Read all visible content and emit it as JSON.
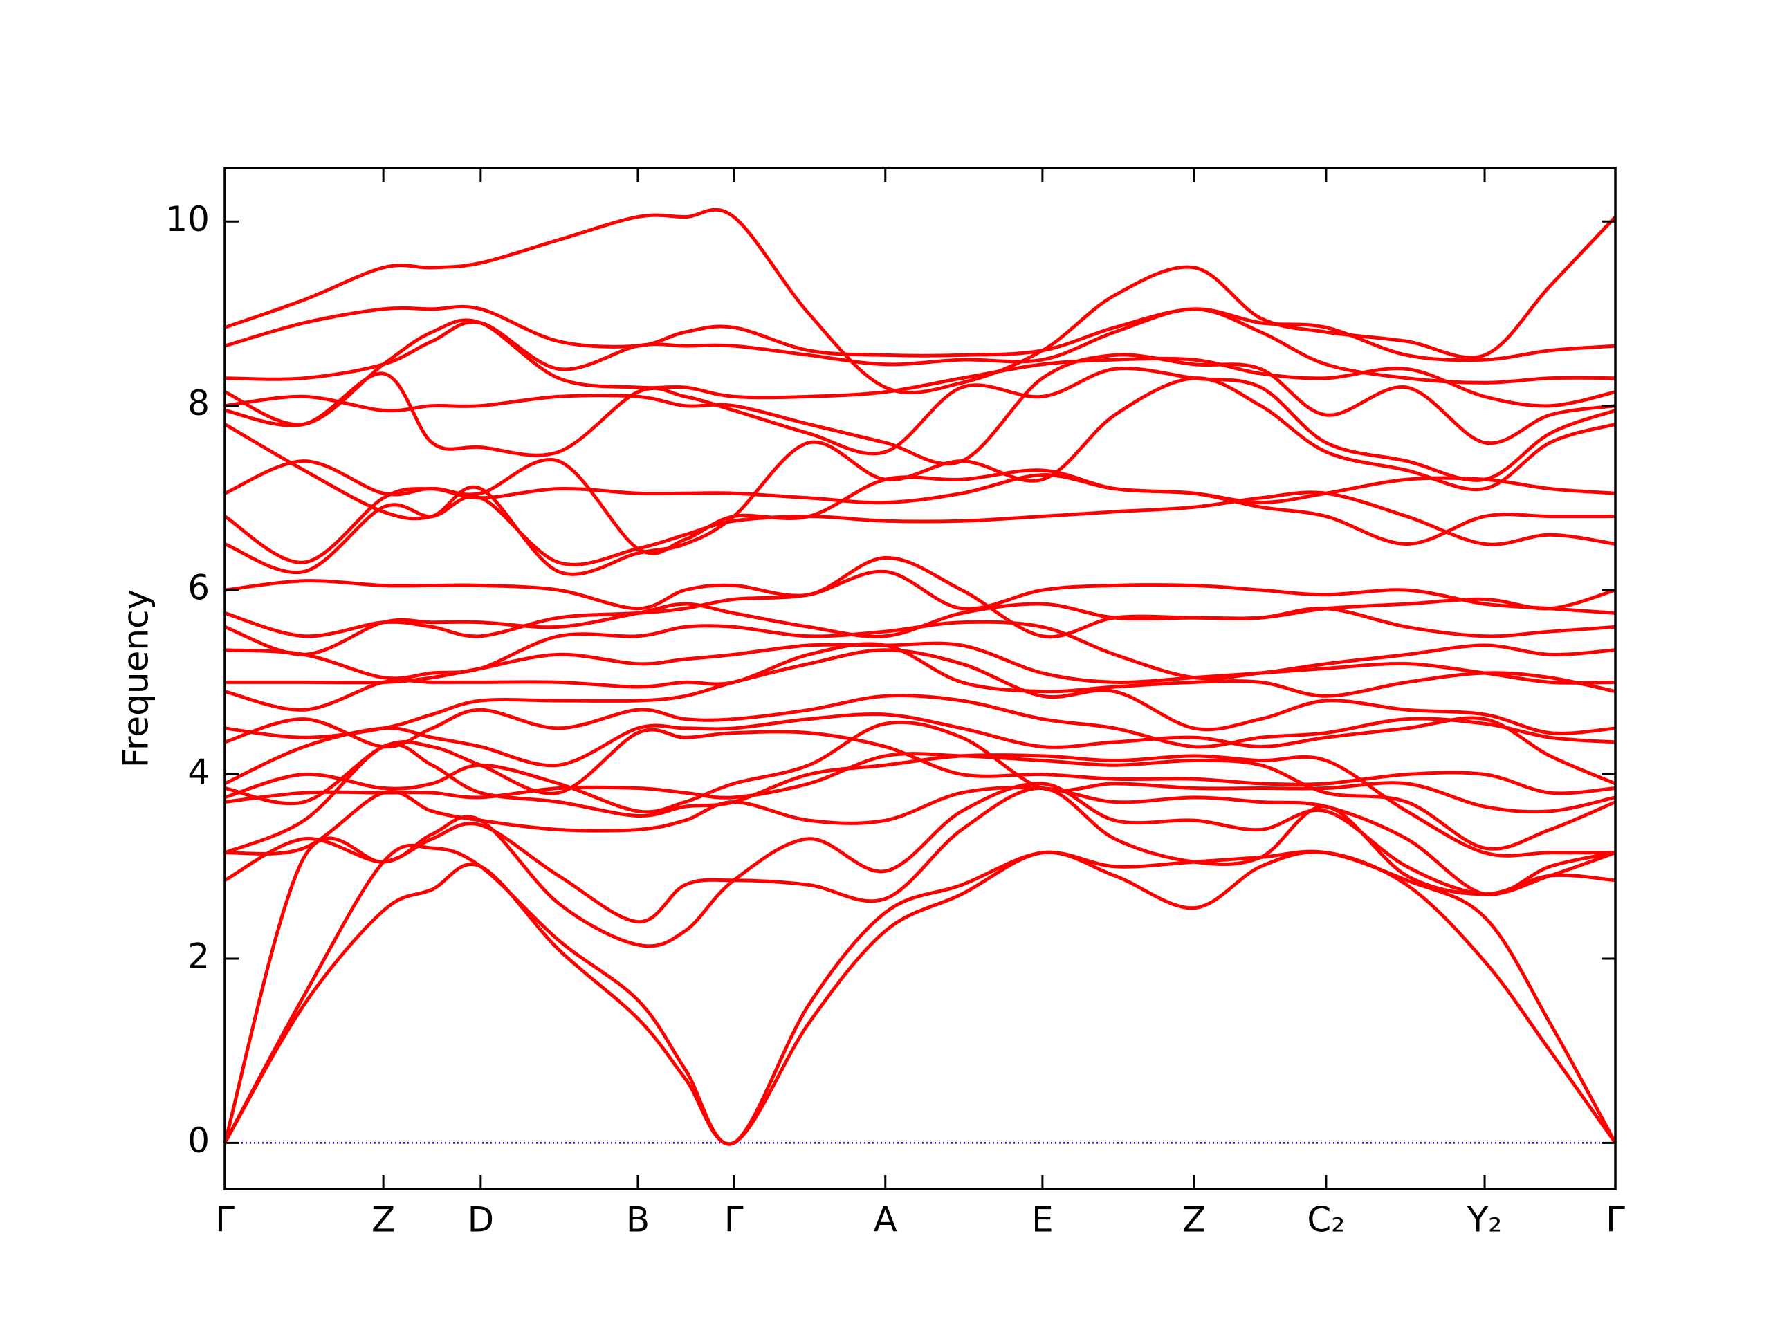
{
  "chart_data": {
    "type": "line",
    "ylabel": "Frequency",
    "color": "#ff0000",
    "zero_line": {
      "y": 0,
      "color": "#0000ff"
    },
    "xlim": [
      0,
      1
    ],
    "ylim": [
      -0.5,
      10.58
    ],
    "xticks": [
      {
        "value": 0,
        "label": "Γ"
      },
      {
        "value": 0.114,
        "label": "Z"
      },
      {
        "value": 0.184,
        "label": "D"
      },
      {
        "value": 0.297,
        "label": "B"
      },
      {
        "value": 0.366,
        "label": "Γ"
      },
      {
        "value": 0.475,
        "label": "A"
      },
      {
        "value": 0.588,
        "label": "E"
      },
      {
        "value": 0.697,
        "label": "Z"
      },
      {
        "value": 0.792,
        "label": "C₂"
      },
      {
        "value": 0.906,
        "label": "Y₂"
      },
      {
        "value": 1,
        "label": "Γ"
      }
    ],
    "yticks": [
      0,
      2,
      4,
      6,
      8,
      10
    ],
    "x": [
      0,
      0.057,
      0.114,
      0.149,
      0.184,
      0.24,
      0.297,
      0.331,
      0.366,
      0.42,
      0.475,
      0.53,
      0.588,
      0.64,
      0.697,
      0.745,
      0.792,
      0.85,
      0.906,
      0.953,
      1
    ],
    "series": [
      {
        "values": [
          0,
          1.5,
          2.52,
          2.75,
          3.0,
          2.1,
          1.35,
          0.7,
          0,
          1.3,
          2.3,
          2.7,
          3.15,
          2.9,
          2.55,
          3.0,
          3.15,
          2.8,
          1.97,
          1.0,
          0
        ]
      },
      {
        "values": [
          0,
          1.6,
          3.05,
          3.2,
          3.0,
          2.2,
          1.55,
          0.8,
          0,
          1.5,
          2.5,
          2.8,
          3.15,
          3.0,
          3.05,
          3.1,
          3.15,
          2.85,
          2.45,
          1.3,
          0
        ]
      },
      {
        "values": [
          0,
          3.1,
          3.05,
          3.3,
          3.45,
          2.9,
          2.4,
          2.8,
          2.85,
          2.8,
          2.65,
          3.4,
          3.85,
          3.3,
          3.05,
          3.1,
          3.65,
          2.9,
          2.7,
          2.9,
          2.85
        ]
      },
      {
        "values": [
          2.85,
          3.3,
          3.05,
          3.35,
          3.5,
          2.6,
          2.15,
          2.3,
          2.85,
          3.3,
          2.95,
          3.6,
          3.9,
          3.5,
          3.5,
          3.4,
          3.6,
          3.0,
          2.7,
          2.9,
          3.15
        ]
      },
      {
        "values": [
          3.15,
          3.2,
          3.8,
          3.6,
          3.5,
          3.4,
          3.4,
          3.5,
          3.7,
          3.5,
          3.5,
          3.8,
          3.85,
          3.7,
          3.75,
          3.7,
          3.65,
          3.3,
          2.7,
          3.0,
          3.15
        ]
      },
      {
        "values": [
          3.15,
          3.5,
          4.3,
          4.1,
          3.8,
          3.7,
          3.55,
          3.65,
          3.7,
          4.0,
          4.1,
          4.2,
          4.2,
          4.15,
          4.2,
          4.15,
          4.15,
          3.6,
          3.15,
          3.15,
          3.15
        ]
      },
      {
        "values": [
          3.7,
          3.8,
          3.8,
          3.8,
          3.75,
          3.85,
          3.85,
          3.8,
          3.75,
          3.9,
          4.2,
          4.2,
          4.15,
          4.1,
          4.15,
          4.1,
          3.8,
          3.7,
          3.2,
          3.4,
          3.7
        ]
      },
      {
        "values": [
          3.75,
          4.0,
          3.85,
          3.9,
          4.1,
          3.9,
          3.6,
          3.7,
          3.9,
          4.1,
          4.55,
          4.4,
          3.85,
          3.9,
          3.85,
          3.85,
          3.85,
          3.9,
          3.65,
          3.6,
          3.75
        ]
      },
      {
        "values": [
          3.85,
          3.7,
          4.3,
          4.3,
          4.1,
          3.8,
          4.45,
          4.4,
          4.45,
          4.45,
          4.3,
          4.0,
          4.0,
          3.95,
          3.95,
          3.9,
          3.9,
          4.0,
          4.0,
          3.8,
          3.85
        ]
      },
      {
        "values": [
          3.9,
          4.3,
          4.5,
          4.4,
          4.3,
          4.1,
          4.5,
          4.5,
          4.5,
          4.6,
          4.65,
          4.5,
          4.3,
          4.35,
          4.4,
          4.3,
          4.4,
          4.5,
          4.6,
          4.2,
          3.9
        ]
      },
      {
        "values": [
          4.35,
          4.6,
          4.3,
          4.5,
          4.7,
          4.5,
          4.7,
          4.6,
          4.6,
          4.7,
          4.85,
          4.8,
          4.6,
          4.5,
          4.3,
          4.4,
          4.45,
          4.6,
          4.55,
          4.4,
          4.35
        ]
      },
      {
        "values": [
          4.5,
          4.4,
          4.5,
          4.65,
          4.8,
          4.8,
          4.8,
          4.85,
          5.0,
          5.2,
          5.35,
          5.2,
          4.85,
          4.9,
          4.5,
          4.6,
          4.8,
          4.7,
          4.65,
          4.45,
          4.5
        ]
      },
      {
        "values": [
          4.9,
          4.7,
          5.0,
          5.0,
          5.0,
          5.0,
          4.95,
          5.0,
          5.0,
          5.3,
          5.4,
          5.0,
          4.9,
          4.95,
          5.0,
          5.0,
          4.85,
          5.0,
          5.1,
          5.05,
          4.9
        ]
      },
      {
        "values": [
          5.0,
          5.0,
          5.0,
          5.05,
          5.15,
          5.3,
          5.2,
          5.25,
          5.3,
          5.4,
          5.4,
          5.4,
          5.1,
          5.0,
          5.05,
          5.1,
          5.15,
          5.2,
          5.1,
          5.0,
          5.0
        ]
      },
      {
        "values": [
          5.35,
          5.3,
          5.05,
          5.1,
          5.15,
          5.5,
          5.5,
          5.6,
          5.6,
          5.5,
          5.55,
          5.65,
          5.6,
          5.3,
          5.05,
          5.1,
          5.2,
          5.3,
          5.4,
          5.3,
          5.35
        ]
      },
      {
        "values": [
          5.6,
          5.3,
          5.65,
          5.65,
          5.65,
          5.6,
          5.75,
          5.85,
          5.75,
          5.6,
          5.5,
          5.75,
          5.85,
          5.7,
          5.7,
          5.7,
          5.8,
          5.6,
          5.5,
          5.55,
          5.6
        ]
      },
      {
        "values": [
          5.75,
          5.5,
          5.65,
          5.6,
          5.5,
          5.7,
          5.75,
          5.8,
          5.9,
          5.95,
          6.2,
          5.8,
          6.0,
          6.05,
          6.05,
          6.0,
          5.95,
          6.0,
          5.85,
          5.8,
          5.75
        ]
      },
      {
        "values": [
          6.0,
          6.1,
          6.05,
          6.05,
          6.05,
          6.0,
          5.8,
          6.0,
          6.05,
          5.95,
          6.35,
          6.0,
          5.5,
          5.7,
          5.7,
          5.7,
          5.8,
          5.85,
          5.9,
          5.8,
          6.0
        ]
      },
      {
        "values": [
          6.5,
          6.2,
          6.9,
          6.8,
          7.0,
          6.3,
          6.45,
          6.6,
          6.75,
          6.8,
          6.75,
          6.75,
          6.8,
          6.85,
          6.9,
          7.0,
          7.05,
          6.8,
          6.5,
          6.6,
          6.5
        ]
      },
      {
        "values": [
          6.8,
          6.3,
          7.0,
          7.1,
          7.05,
          7.4,
          6.45,
          6.55,
          6.8,
          6.8,
          7.2,
          7.2,
          7.3,
          7.1,
          7.05,
          6.9,
          6.8,
          6.5,
          6.8,
          6.8,
          6.8
        ]
      },
      {
        "values": [
          7.05,
          7.4,
          7.05,
          7.1,
          7.0,
          7.1,
          7.05,
          7.05,
          7.05,
          7.0,
          6.95,
          7.05,
          7.25,
          7.1,
          7.05,
          6.95,
          7.05,
          7.2,
          7.2,
          7.1,
          7.05
        ]
      },
      {
        "values": [
          7.8,
          7.3,
          6.85,
          6.8,
          7.1,
          6.2,
          6.4,
          6.5,
          6.8,
          7.6,
          7.2,
          7.4,
          7.2,
          7.9,
          8.3,
          8.0,
          7.5,
          7.3,
          7.1,
          7.6,
          7.8
        ]
      },
      {
        "values": [
          7.95,
          7.8,
          8.35,
          7.6,
          7.55,
          7.5,
          8.15,
          8.1,
          7.95,
          7.7,
          7.5,
          8.2,
          8.1,
          8.4,
          8.3,
          8.2,
          7.6,
          7.4,
          7.2,
          7.7,
          7.95
        ]
      },
      {
        "values": [
          8.0,
          8.1,
          7.95,
          8.0,
          8.0,
          8.1,
          8.1,
          8.0,
          8.0,
          7.8,
          7.6,
          7.4,
          8.3,
          8.55,
          8.45,
          8.4,
          7.9,
          8.2,
          7.6,
          7.9,
          8.0
        ]
      },
      {
        "values": [
          8.15,
          7.8,
          8.45,
          8.8,
          8.9,
          8.3,
          8.2,
          8.2,
          8.1,
          8.1,
          8.15,
          8.3,
          8.45,
          8.5,
          8.5,
          8.35,
          8.3,
          8.4,
          8.1,
          8.0,
          8.15
        ]
      },
      {
        "values": [
          8.3,
          8.3,
          8.45,
          8.7,
          8.9,
          8.4,
          8.65,
          8.65,
          8.65,
          8.55,
          8.45,
          8.5,
          8.5,
          8.8,
          9.05,
          8.8,
          8.45,
          8.3,
          8.25,
          8.3,
          8.3
        ]
      },
      {
        "values": [
          8.65,
          8.9,
          9.05,
          9.05,
          9.05,
          8.7,
          8.65,
          8.8,
          8.85,
          8.6,
          8.55,
          8.55,
          8.6,
          8.85,
          9.05,
          8.9,
          8.85,
          8.55,
          8.5,
          8.6,
          8.65
        ]
      },
      {
        "values": [
          8.85,
          9.15,
          9.5,
          9.5,
          9.55,
          9.8,
          10.05,
          10.05,
          10.05,
          9.0,
          8.2,
          8.25,
          8.6,
          9.2,
          9.5,
          8.95,
          8.8,
          8.7,
          8.55,
          9.3,
          10.05
        ]
      }
    ]
  }
}
